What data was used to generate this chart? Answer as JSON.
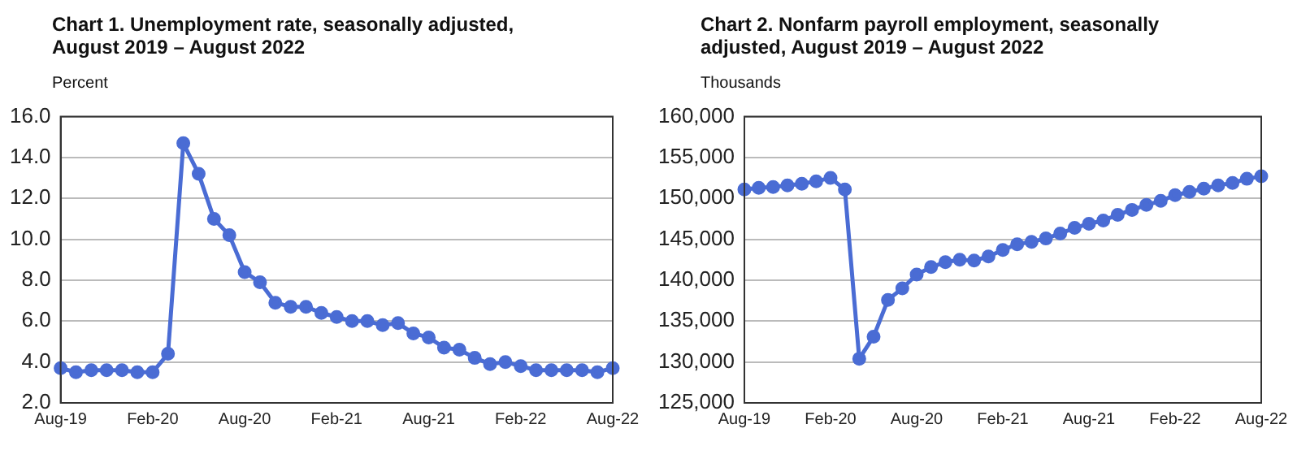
{
  "chart_data": [
    {
      "type": "line",
      "title": "Chart 1. Unemployment rate, seasonally adjusted, August 2019 – August 2022",
      "ylabel": "Percent",
      "categories": [
        "Aug-19",
        null,
        null,
        null,
        null,
        null,
        "Feb-20",
        null,
        null,
        null,
        null,
        null,
        "Aug-20",
        null,
        null,
        null,
        null,
        null,
        "Feb-21",
        null,
        null,
        null,
        null,
        null,
        "Aug-21",
        null,
        null,
        null,
        null,
        null,
        "Feb-22",
        null,
        null,
        null,
        null,
        null,
        "Aug-22"
      ],
      "series": [
        {
          "color": "#4a6cd4",
          "values": [
            3.7,
            3.5,
            3.6,
            3.6,
            3.6,
            3.5,
            3.5,
            4.4,
            14.7,
            13.2,
            11.0,
            10.2,
            8.4,
            7.9,
            6.9,
            6.7,
            6.7,
            6.4,
            6.2,
            6.0,
            6.0,
            5.8,
            5.9,
            5.4,
            5.2,
            4.7,
            4.6,
            4.2,
            3.9,
            4.0,
            3.8,
            3.6,
            3.6,
            3.6,
            3.6,
            3.5,
            3.7
          ]
        }
      ],
      "ylim": [
        2,
        16
      ],
      "yticks": [
        {
          "value": 2,
          "label": "2.0"
        },
        {
          "value": 4,
          "label": "4.0"
        },
        {
          "value": 6,
          "label": "6.0"
        },
        {
          "value": 8,
          "label": "8.0"
        },
        {
          "value": 10,
          "label": "10.0"
        },
        {
          "value": 12,
          "label": "12.0"
        },
        {
          "value": 14,
          "label": "14.0"
        },
        {
          "value": 16,
          "label": "16.0"
        }
      ],
      "grid": "y",
      "marker": "circle"
    },
    {
      "type": "line",
      "title": "Chart 2. Nonfarm payroll employment, seasonally adjusted, August 2019 – August 2022",
      "ylabel": "Thousands",
      "categories": [
        "Aug-19",
        null,
        null,
        null,
        null,
        null,
        "Feb-20",
        null,
        null,
        null,
        null,
        null,
        "Aug-20",
        null,
        null,
        null,
        null,
        null,
        "Feb-21",
        null,
        null,
        null,
        null,
        null,
        "Aug-21",
        null,
        null,
        null,
        null,
        null,
        "Feb-22",
        null,
        null,
        null,
        null,
        null,
        "Aug-22"
      ],
      "series": [
        {
          "color": "#4a6cd4",
          "values": [
            151100,
            151300,
            151400,
            151600,
            151800,
            152100,
            152500,
            151100,
            130400,
            133100,
            137600,
            139000,
            140700,
            141600,
            142200,
            142500,
            142400,
            142900,
            143700,
            144400,
            144700,
            145100,
            145700,
            146400,
            146900,
            147300,
            148000,
            148600,
            149200,
            149700,
            150400,
            150800,
            151200,
            151600,
            151900,
            152400,
            152700
          ]
        }
      ],
      "ylim": [
        125000,
        160000
      ],
      "yticks": [
        {
          "value": 125000,
          "label": "125,000"
        },
        {
          "value": 130000,
          "label": "130,000"
        },
        {
          "value": 135000,
          "label": "135,000"
        },
        {
          "value": 140000,
          "label": "140,000"
        },
        {
          "value": 145000,
          "label": "145,000"
        },
        {
          "value": 150000,
          "label": "150,000"
        },
        {
          "value": 155000,
          "label": "155,000"
        },
        {
          "value": 160000,
          "label": "160,000"
        }
      ],
      "grid": "y",
      "marker": "circle"
    }
  ]
}
